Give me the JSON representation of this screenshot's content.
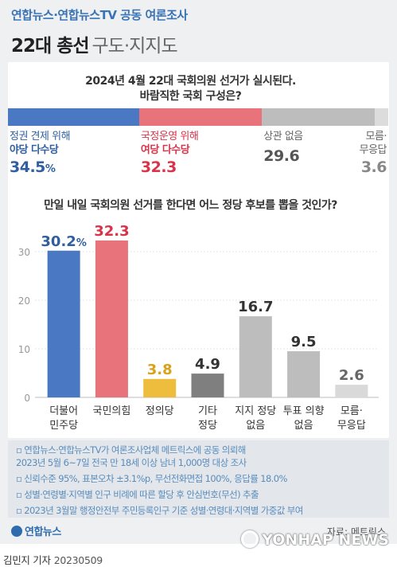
{
  "header": {
    "source_line": "연합뉴스·연합뉴스TV 공동 여론조사",
    "title_main": "22대 총선",
    "title_sub": "구도·지지도"
  },
  "question1": {
    "line1": "2024년 4월 22대 국회의원 선거가 실시된다.",
    "line2": "바람직한 국회 구성은?"
  },
  "question2": {
    "line1": "만일 내일 국회의원 선거를 한다면 어느 정당 후보를 뽑을 것인가?"
  },
  "chart_data": [
    {
      "type": "bar",
      "orientation": "horizontal-stacked",
      "categories": [
        {
          "label_line1": "정권 견제 위해",
          "label_line2": "야당 다수당",
          "value": 34.5,
          "display": "34.5",
          "unit": "%",
          "color": "#4a78c2"
        },
        {
          "label_line1": "국정운영 위해",
          "label_line2": "여당 다수당",
          "value": 32.3,
          "display": "32.3",
          "unit": "",
          "color": "#e8737a"
        },
        {
          "label_line1": "상관 없음",
          "label_line2": "",
          "value": 29.6,
          "display": "29.6",
          "unit": "",
          "color": "#bdbdbd"
        },
        {
          "label_line1": "모름·",
          "label_line2": "무응답",
          "value": 3.6,
          "display": "3.6",
          "unit": "",
          "color": "#dcdcdc"
        }
      ]
    },
    {
      "type": "bar",
      "ylim": [
        0,
        35
      ],
      "yticks": [
        0,
        10,
        20,
        30
      ],
      "grid": true,
      "categories": [
        {
          "label_line1": "더불어",
          "label_line2": "민주당",
          "value": 30.2,
          "display": "30.2",
          "unit": "%",
          "color": "#4a78c2",
          "label_color": "#2f5fa0"
        },
        {
          "label_line1": "국민의힘",
          "label_line2": "",
          "value": 32.3,
          "display": "32.3",
          "unit": "",
          "color": "#e8737a",
          "label_color": "#d9334a"
        },
        {
          "label_line1": "정의당",
          "label_line2": "",
          "value": 3.8,
          "display": "3.8",
          "unit": "",
          "color": "#eebd3d",
          "label_color": "#d9a21a"
        },
        {
          "label_line1": "기타",
          "label_line2": "정당",
          "value": 4.9,
          "display": "4.9",
          "unit": "",
          "color": "#7f7f7f",
          "label_color": "#333333"
        },
        {
          "label_line1": "지지 정당",
          "label_line2": "없음",
          "value": 16.7,
          "display": "16.7",
          "unit": "",
          "color": "#bdbdbd",
          "label_color": "#333333"
        },
        {
          "label_line1": "투표 의향",
          "label_line2": "없음",
          "value": 9.5,
          "display": "9.5",
          "unit": "",
          "color": "#bdbdbd",
          "label_color": "#333333"
        },
        {
          "label_line1": "모름·",
          "label_line2": "무응답",
          "value": 2.6,
          "display": "2.6",
          "unit": "",
          "color": "#d9d9d9",
          "label_color": "#666666"
        }
      ]
    }
  ],
  "notes": [
    "▫ 연합뉴스·연합뉴스TV가 여론조사업체 메트릭스에 공동 의뢰해",
    "   2023년 5월 6~7일 전국 만 18세 이상 남녀 1,000명 대상 조사",
    "▫ 신뢰수준 95%, 표본오차 ±3.1%p, 무선전화면접 100%, 응답률 18.0%",
    "▫ 성별·연령별·지역별 인구 비례에 따른 할당 후 안심번호(무선) 추출",
    "▫ 2023년 3월말 행정안전부 주민등록인구 기준 성별·연령대·지역별 가중값 부여"
  ],
  "footer": {
    "brand": "연합뉴스",
    "source": "자료: 메트릭스",
    "byline": "김민지 기자",
    "date": "20230509",
    "watermark": "YONHAP NEWS"
  }
}
